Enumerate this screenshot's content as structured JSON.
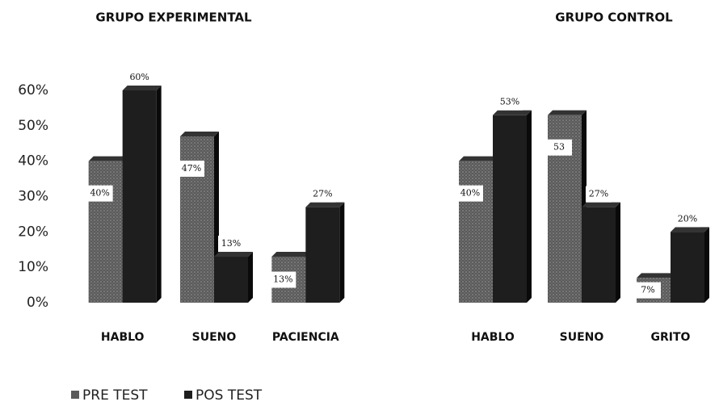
{
  "chart_data": [
    {
      "type": "bar",
      "title": "GRUPO EXPERIMENTAL",
      "categories": [
        "HABLO",
        "SUENO",
        "PACIENCIA"
      ],
      "series": [
        {
          "name": "PRE TEST",
          "color": "#5a5a5a",
          "values": [
            40,
            47,
            13
          ],
          "value_labels": [
            "40%",
            "47%",
            "13%"
          ]
        },
        {
          "name": "POS TEST",
          "color": "#1e1e1e",
          "values": [
            60,
            13,
            27
          ],
          "value_labels": [
            "60%",
            "13%",
            "27%"
          ]
        }
      ],
      "ylim": [
        0,
        60
      ],
      "yticks": [
        {
          "value": 0,
          "label": "0%"
        },
        {
          "value": 10,
          "label": "10%"
        },
        {
          "value": 20,
          "label": "20%"
        },
        {
          "value": 30,
          "label": "30%"
        },
        {
          "value": 40,
          "label": "40%"
        },
        {
          "value": 50,
          "label": "50%"
        },
        {
          "value": 60,
          "label": "60%"
        }
      ],
      "legend": "bottom-left"
    },
    {
      "type": "bar",
      "title": "GRUPO CONTROL",
      "categories": [
        "HABLO",
        "SUENO",
        "GRITO"
      ],
      "series": [
        {
          "color": "#5a5a5a",
          "values": [
            40,
            53,
            7
          ],
          "value_labels": [
            "40%",
            "53",
            "7%"
          ]
        },
        {
          "color": "#1e1e1e",
          "values": [
            53,
            27,
            20
          ],
          "value_labels": [
            "53%",
            "27%",
            "20%"
          ]
        }
      ],
      "ylim": [
        0,
        60
      ]
    }
  ]
}
